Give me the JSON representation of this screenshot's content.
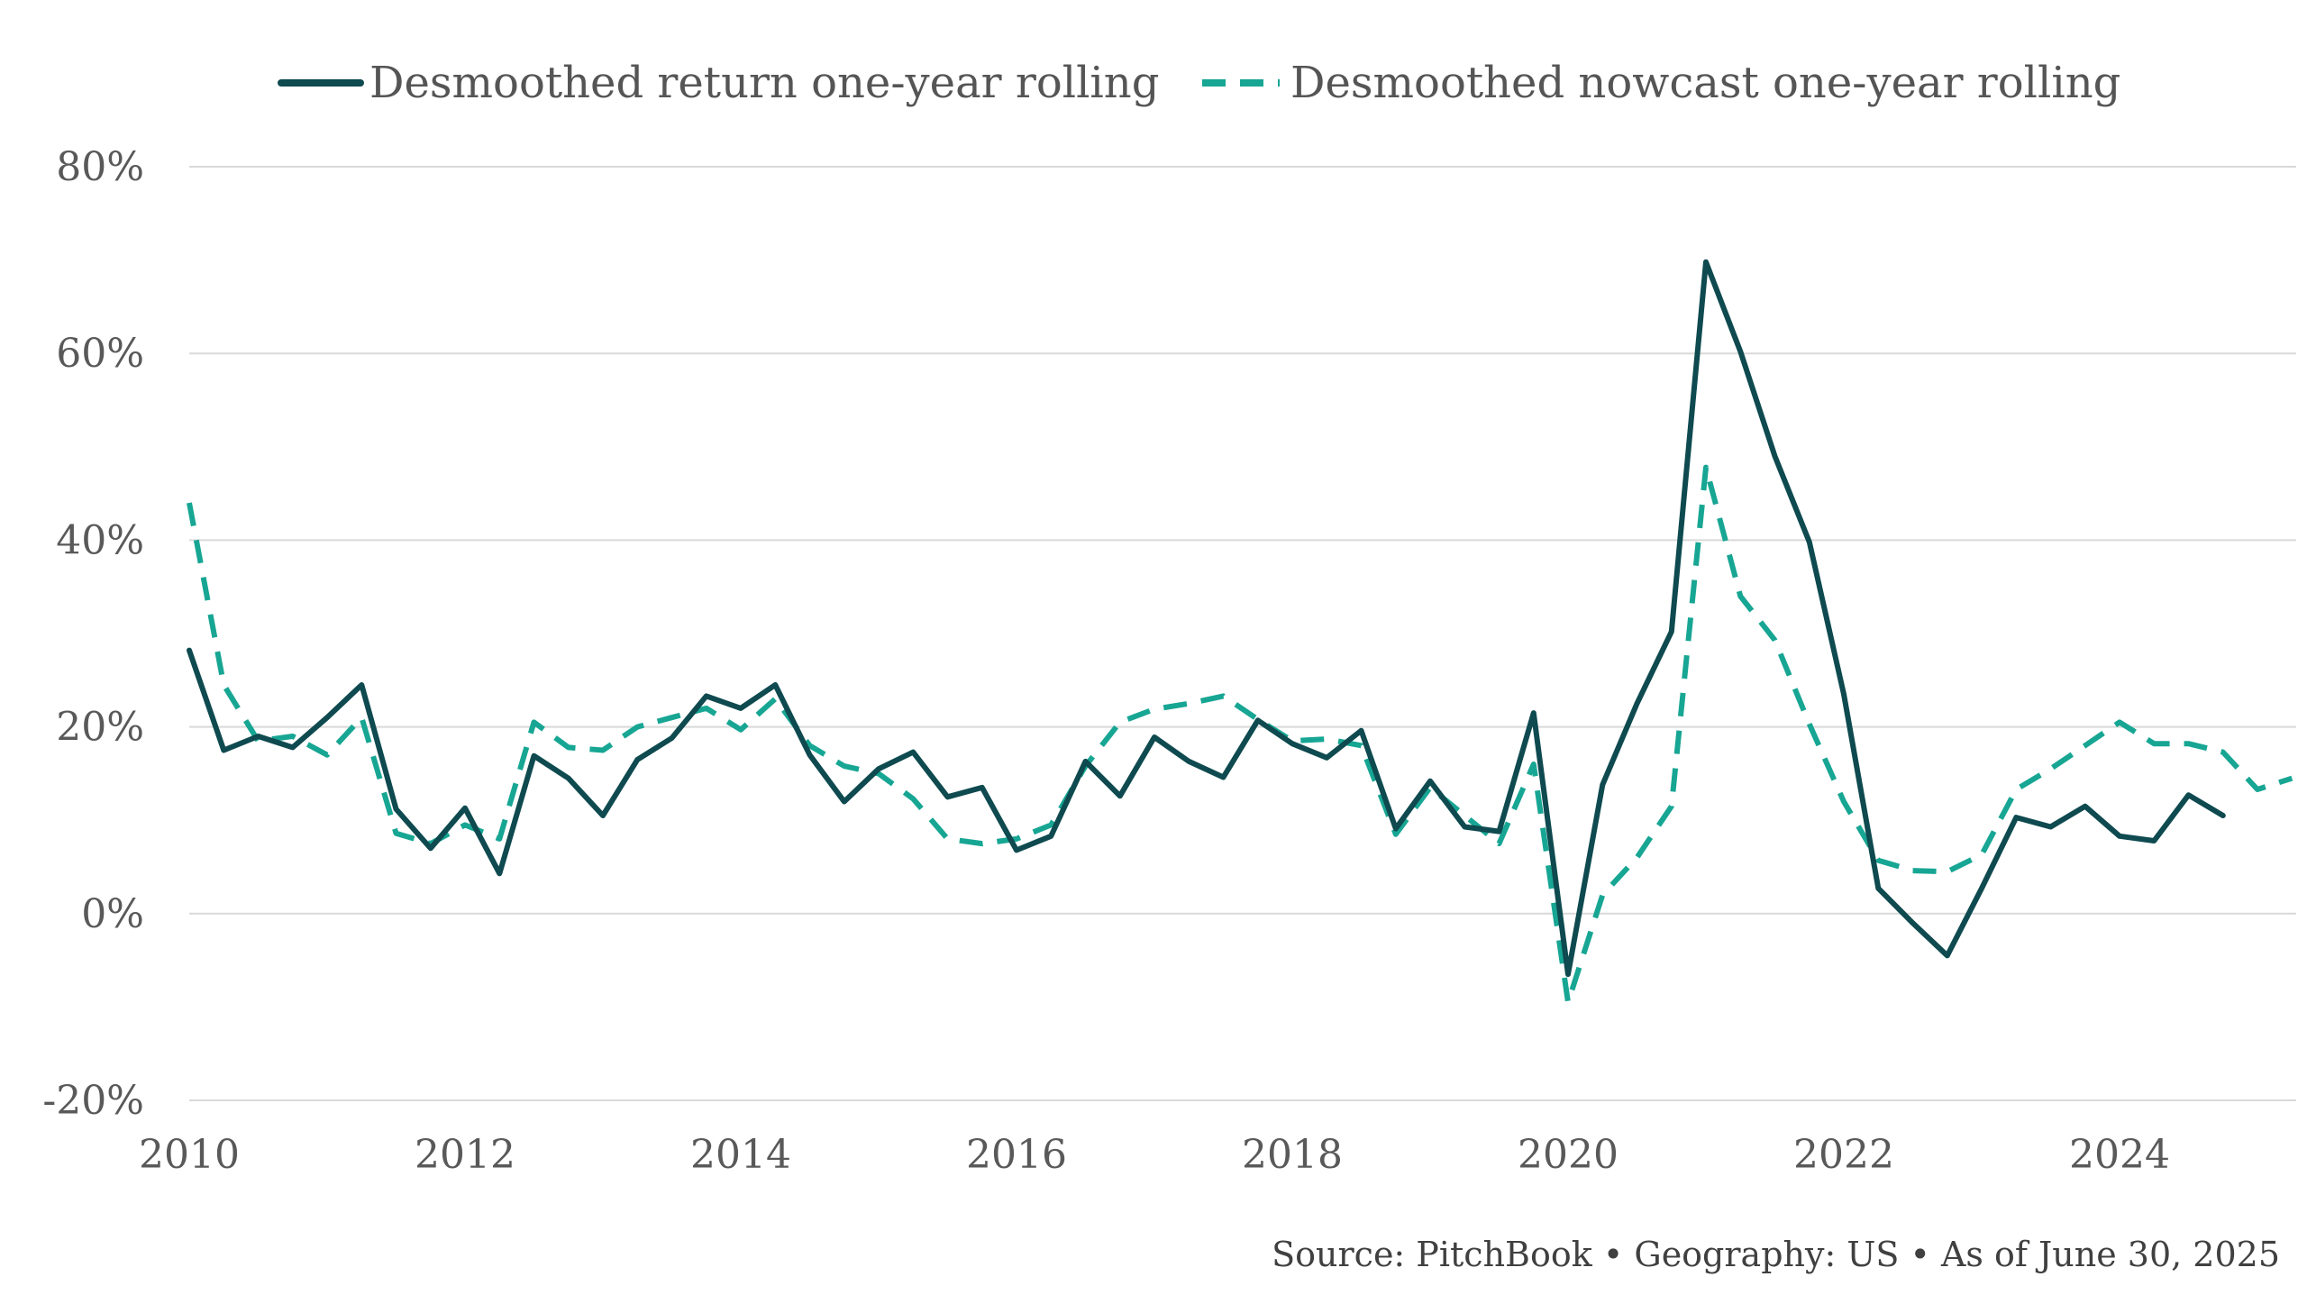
{
  "chart_data": {
    "type": "line",
    "title": "",
    "xlabel": "",
    "ylabel": "",
    "xlim": [
      2010,
      2025.25
    ],
    "ylim": [
      -20,
      80
    ],
    "x_ticks": [
      "2010",
      "2012",
      "2014",
      "2016",
      "2018",
      "2020",
      "2022",
      "2024"
    ],
    "y_ticks": [
      {
        "value": 80,
        "label": "80%"
      },
      {
        "value": 60,
        "label": "60%"
      },
      {
        "value": 40,
        "label": "40%"
      },
      {
        "value": 20,
        "label": "20%"
      },
      {
        "value": 0,
        "label": "0%"
      },
      {
        "value": -20,
        "label": "-20%"
      }
    ],
    "negative_label_color": "#cc0000",
    "grid": true,
    "legend_position": "top",
    "series": [
      {
        "name": "Desmoothed return one-year rolling",
        "style": "solid",
        "color": "#0e4a4f",
        "x": [
          2010.0,
          2010.25,
          2010.5,
          2010.75,
          2011.0,
          2011.25,
          2011.5,
          2011.75,
          2012.0,
          2012.25,
          2012.5,
          2012.75,
          2013.0,
          2013.25,
          2013.5,
          2013.75,
          2014.0,
          2014.25,
          2014.5,
          2014.75,
          2015.0,
          2015.25,
          2015.5,
          2015.75,
          2016.0,
          2016.25,
          2016.5,
          2016.75,
          2017.0,
          2017.25,
          2017.5,
          2017.75,
          2018.0,
          2018.25,
          2018.5,
          2018.75,
          2019.0,
          2019.25,
          2019.5,
          2019.75,
          2020.0,
          2020.25,
          2020.5,
          2020.75,
          2021.0,
          2021.25,
          2021.5,
          2021.75,
          2022.0,
          2022.25,
          2022.5,
          2022.75,
          2023.0,
          2023.25,
          2023.5,
          2023.75,
          2024.0,
          2024.25,
          2024.5,
          2024.75
        ],
        "values": [
          28.2,
          17.5,
          19.0,
          17.8,
          21.0,
          24.5,
          11.2,
          7.0,
          11.3,
          4.3,
          16.9,
          14.5,
          10.5,
          16.5,
          18.8,
          23.3,
          22.0,
          24.5,
          17.0,
          12.0,
          15.5,
          17.3,
          12.5,
          13.5,
          6.8,
          8.3,
          16.3,
          12.6,
          18.9,
          16.3,
          14.6,
          20.7,
          18.2,
          16.7,
          19.6,
          9.1,
          14.2,
          9.3,
          8.8,
          21.5,
          -6.5,
          13.8,
          22.5,
          30.2,
          69.8,
          60.2,
          49.0,
          39.8,
          23.5,
          2.7,
          -1.0,
          -4.5,
          2.7,
          10.3,
          9.3,
          11.5,
          8.3,
          7.8,
          12.7,
          10.5
        ]
      },
      {
        "name": "Desmoothed nowcast one-year rolling",
        "style": "dashed",
        "color": "#17a693",
        "x": [
          2010.0,
          2010.25,
          2010.5,
          2010.75,
          2011.0,
          2011.25,
          2011.5,
          2011.75,
          2012.0,
          2012.25,
          2012.5,
          2012.75,
          2013.0,
          2013.25,
          2013.5,
          2013.75,
          2014.0,
          2014.25,
          2014.5,
          2014.75,
          2015.0,
          2015.25,
          2015.5,
          2015.75,
          2016.0,
          2016.25,
          2016.5,
          2016.75,
          2017.0,
          2017.25,
          2017.5,
          2017.75,
          2018.0,
          2018.25,
          2018.5,
          2018.75,
          2019.0,
          2019.25,
          2019.5,
          2019.75,
          2020.0,
          2020.25,
          2020.5,
          2020.75,
          2021.0,
          2021.25,
          2021.5,
          2021.75,
          2022.0,
          2022.25,
          2022.5,
          2022.75,
          2023.0,
          2023.25,
          2023.5,
          2023.75,
          2024.0,
          2024.25,
          2024.5,
          2024.75,
          2025.0,
          2025.25
        ],
        "values": [
          44.0,
          24.5,
          18.5,
          19.0,
          17.0,
          21.0,
          8.6,
          7.5,
          9.5,
          8.0,
          20.5,
          17.8,
          17.5,
          20.0,
          21.0,
          22.0,
          19.7,
          23.0,
          18.0,
          15.8,
          15.0,
          12.3,
          8.0,
          7.5,
          8.0,
          9.5,
          15.8,
          20.5,
          21.9,
          22.5,
          23.3,
          20.8,
          18.5,
          18.7,
          18.0,
          8.5,
          13.5,
          10.5,
          7.5,
          16.0,
          -9.5,
          2.0,
          6.0,
          11.5,
          47.8,
          34.0,
          29.3,
          20.3,
          12.0,
          5.7,
          4.6,
          4.5,
          6.3,
          13.3,
          15.5,
          18.0,
          20.5,
          18.2,
          18.2,
          17.3,
          13.3,
          14.5
        ]
      }
    ]
  },
  "source_note": "Source: PitchBook • Geography: US • As of June 30, 2025"
}
